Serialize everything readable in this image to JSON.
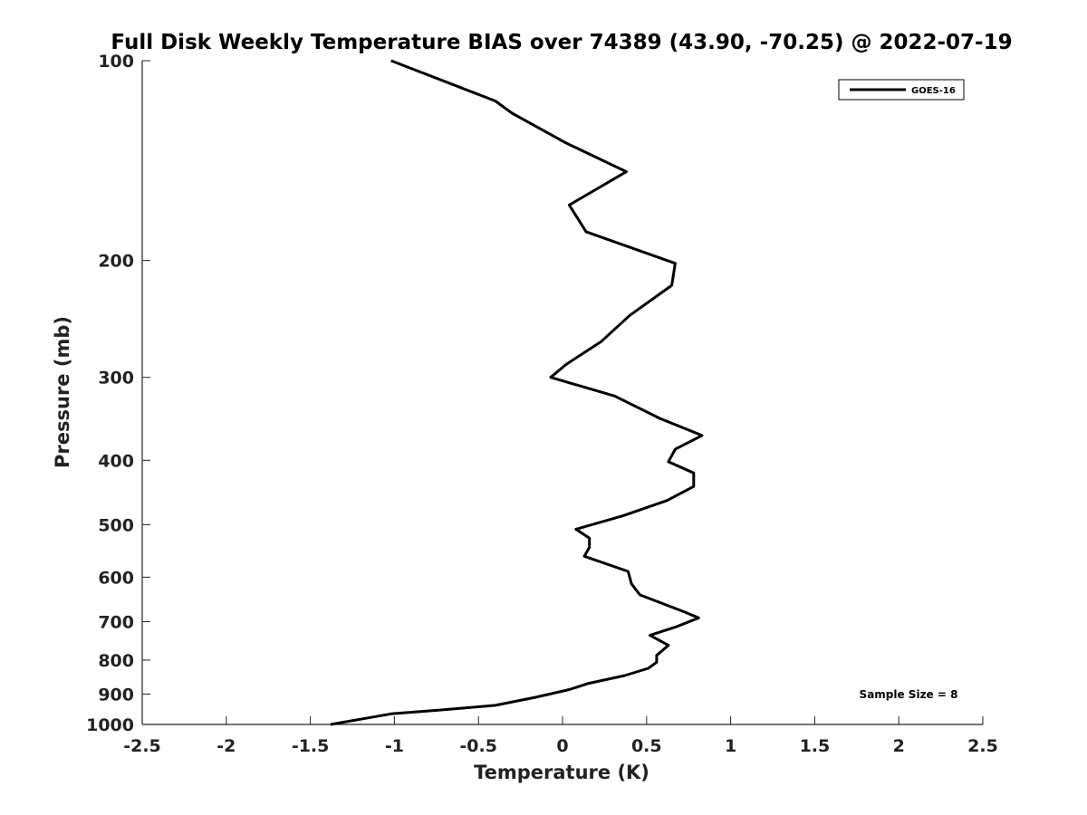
{
  "chart_data": {
    "type": "line",
    "title": "Full Disk Weekly Temperature BIAS over 74389 (43.90, -70.25) @ 2022-07-19",
    "xlabel": "Temperature (K)",
    "ylabel": "Pressure (mb)",
    "xlim": [
      -2.5,
      2.5
    ],
    "ylim": [
      100,
      1000
    ],
    "y_scale": "log",
    "y_reversed": true,
    "grid": false,
    "x_ticks": [
      -2.5,
      -2,
      -1.5,
      -1,
      -0.5,
      0,
      0.5,
      1,
      1.5,
      2,
      2.5
    ],
    "x_tick_labels": [
      "-2.5",
      "-2",
      "-1.5",
      "-1",
      "-0.5",
      "0",
      "0.5",
      "1",
      "1.5",
      "2",
      "2.5"
    ],
    "y_ticks": [
      100,
      200,
      300,
      400,
      500,
      600,
      700,
      800,
      900,
      1000
    ],
    "y_tick_labels": [
      "100",
      "200",
      "300",
      "400",
      "500",
      "600",
      "700",
      "800",
      "900",
      "1000"
    ],
    "legend_position": "top-right",
    "series": [
      {
        "name": "GOES-16",
        "color": "#000000",
        "points": [
          [
            -1.02,
            100
          ],
          [
            -0.4,
            115
          ],
          [
            -0.3,
            120
          ],
          [
            0.02,
            133
          ],
          [
            0.38,
            147
          ],
          [
            0.04,
            165
          ],
          [
            0.14,
            181
          ],
          [
            0.67,
            202
          ],
          [
            0.65,
            218
          ],
          [
            0.4,
            242
          ],
          [
            0.23,
            265
          ],
          [
            0.02,
            287
          ],
          [
            -0.07,
            300
          ],
          [
            0.31,
            320
          ],
          [
            0.58,
            346
          ],
          [
            0.83,
            367
          ],
          [
            0.67,
            385
          ],
          [
            0.63,
            402
          ],
          [
            0.78,
            418
          ],
          [
            0.78,
            438
          ],
          [
            0.62,
            460
          ],
          [
            0.36,
            485
          ],
          [
            0.08,
            508
          ],
          [
            0.16,
            524
          ],
          [
            0.16,
            541
          ],
          [
            0.13,
            558
          ],
          [
            0.39,
            588
          ],
          [
            0.41,
            614
          ],
          [
            0.46,
            638
          ],
          [
            0.72,
            676
          ],
          [
            0.81,
            691
          ],
          [
            0.68,
            712
          ],
          [
            0.52,
            734
          ],
          [
            0.63,
            760
          ],
          [
            0.56,
            787
          ],
          [
            0.56,
            806
          ],
          [
            0.51,
            823
          ],
          [
            0.37,
            844
          ],
          [
            0.15,
            868
          ],
          [
            0.04,
            886
          ],
          [
            -0.16,
            910
          ],
          [
            -0.4,
            936
          ],
          [
            -0.74,
            952
          ],
          [
            -1.02,
            964
          ],
          [
            -1.2,
            982
          ],
          [
            -1.38,
            1000
          ]
        ]
      }
    ],
    "annotations": [
      "Sample Size = 8"
    ]
  }
}
